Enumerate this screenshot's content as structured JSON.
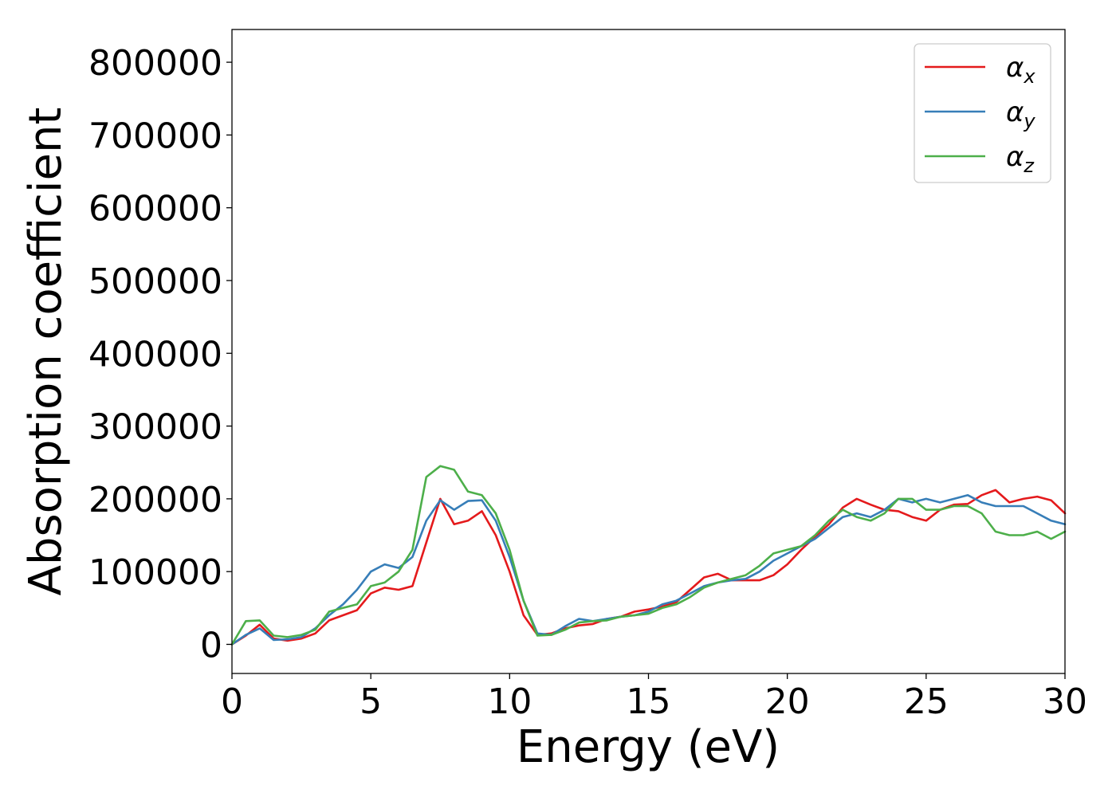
{
  "chart_data": {
    "type": "line",
    "title": "",
    "xlabel": "Energy (eV)",
    "ylabel": "Absorption coefficient",
    "xlim": [
      0,
      30
    ],
    "ylim": [
      -40000,
      845000
    ],
    "xticks": [
      0,
      5,
      10,
      15,
      20,
      25,
      30
    ],
    "xtick_labels": [
      "0",
      "5",
      "10",
      "15",
      "20",
      "25",
      "30"
    ],
    "yticks": [
      0,
      100000,
      200000,
      300000,
      400000,
      500000,
      600000,
      700000,
      800000
    ],
    "ytick_labels": [
      "0",
      "100000",
      "200000",
      "300000",
      "400000",
      "500000",
      "600000",
      "700000",
      "800000"
    ],
    "grid": false,
    "legend_position": "top-right",
    "x": [
      0,
      0.5,
      1,
      1.5,
      2,
      2.5,
      3,
      3.5,
      4,
      4.5,
      5,
      5.5,
      6,
      6.5,
      7,
      7.5,
      8,
      8.5,
      9,
      9.5,
      10,
      10.5,
      11,
      11.5,
      12,
      12.5,
      13,
      13.5,
      14,
      14.5,
      15,
      15.5,
      16,
      16.5,
      17,
      17.5,
      18,
      18.5,
      19,
      19.5,
      20,
      20.5,
      21,
      21.5,
      22,
      22.5,
      23,
      23.5,
      24,
      24.5,
      25,
      25.5,
      26,
      26.5,
      27,
      27.5,
      28,
      28.5,
      29,
      29.5,
      30
    ],
    "series": [
      {
        "name": "α",
        "sub": "x",
        "color": "#e41a1c",
        "values": [
          0,
          12000,
          27000,
          8000,
          5000,
          8000,
          15000,
          33000,
          40000,
          47000,
          70000,
          78000,
          75000,
          80000,
          140000,
          200000,
          165000,
          170000,
          183000,
          150000,
          100000,
          40000,
          13000,
          15000,
          22000,
          26000,
          28000,
          35000,
          38000,
          45000,
          48000,
          52000,
          58000,
          75000,
          92000,
          97000,
          88000,
          88000,
          88000,
          95000,
          110000,
          130000,
          148000,
          165000,
          188000,
          200000,
          192000,
          185000,
          183000,
          175000,
          170000,
          185000,
          192000,
          193000,
          205000,
          212000,
          195000,
          200000,
          203000,
          198000,
          180000
        ]
      },
      {
        "name": "α",
        "sub": "y",
        "color": "#377eb8",
        "values": [
          0,
          13000,
          22000,
          6000,
          7000,
          10000,
          22000,
          40000,
          55000,
          75000,
          100000,
          110000,
          105000,
          120000,
          170000,
          198000,
          185000,
          197000,
          198000,
          170000,
          120000,
          60000,
          15000,
          13000,
          25000,
          35000,
          32000,
          35000,
          38000,
          40000,
          45000,
          55000,
          60000,
          70000,
          80000,
          85000,
          88000,
          90000,
          100000,
          115000,
          125000,
          135000,
          145000,
          160000,
          175000,
          180000,
          175000,
          185000,
          200000,
          195000,
          200000,
          195000,
          200000,
          205000,
          195000,
          190000,
          190000,
          190000,
          180000,
          170000,
          165000
        ]
      },
      {
        "name": "α",
        "sub": "z",
        "color": "#4daf4a",
        "values": [
          0,
          32000,
          33000,
          12000,
          10000,
          13000,
          20000,
          45000,
          50000,
          55000,
          80000,
          85000,
          100000,
          130000,
          230000,
          245000,
          240000,
          210000,
          205000,
          180000,
          130000,
          60000,
          12000,
          13000,
          20000,
          30000,
          32000,
          33000,
          38000,
          40000,
          42000,
          50000,
          55000,
          65000,
          78000,
          85000,
          90000,
          95000,
          108000,
          125000,
          130000,
          135000,
          150000,
          170000,
          185000,
          175000,
          170000,
          180000,
          200000,
          200000,
          185000,
          185000,
          190000,
          190000,
          180000,
          155000,
          150000,
          150000,
          155000,
          145000,
          155000
        ]
      }
    ]
  }
}
